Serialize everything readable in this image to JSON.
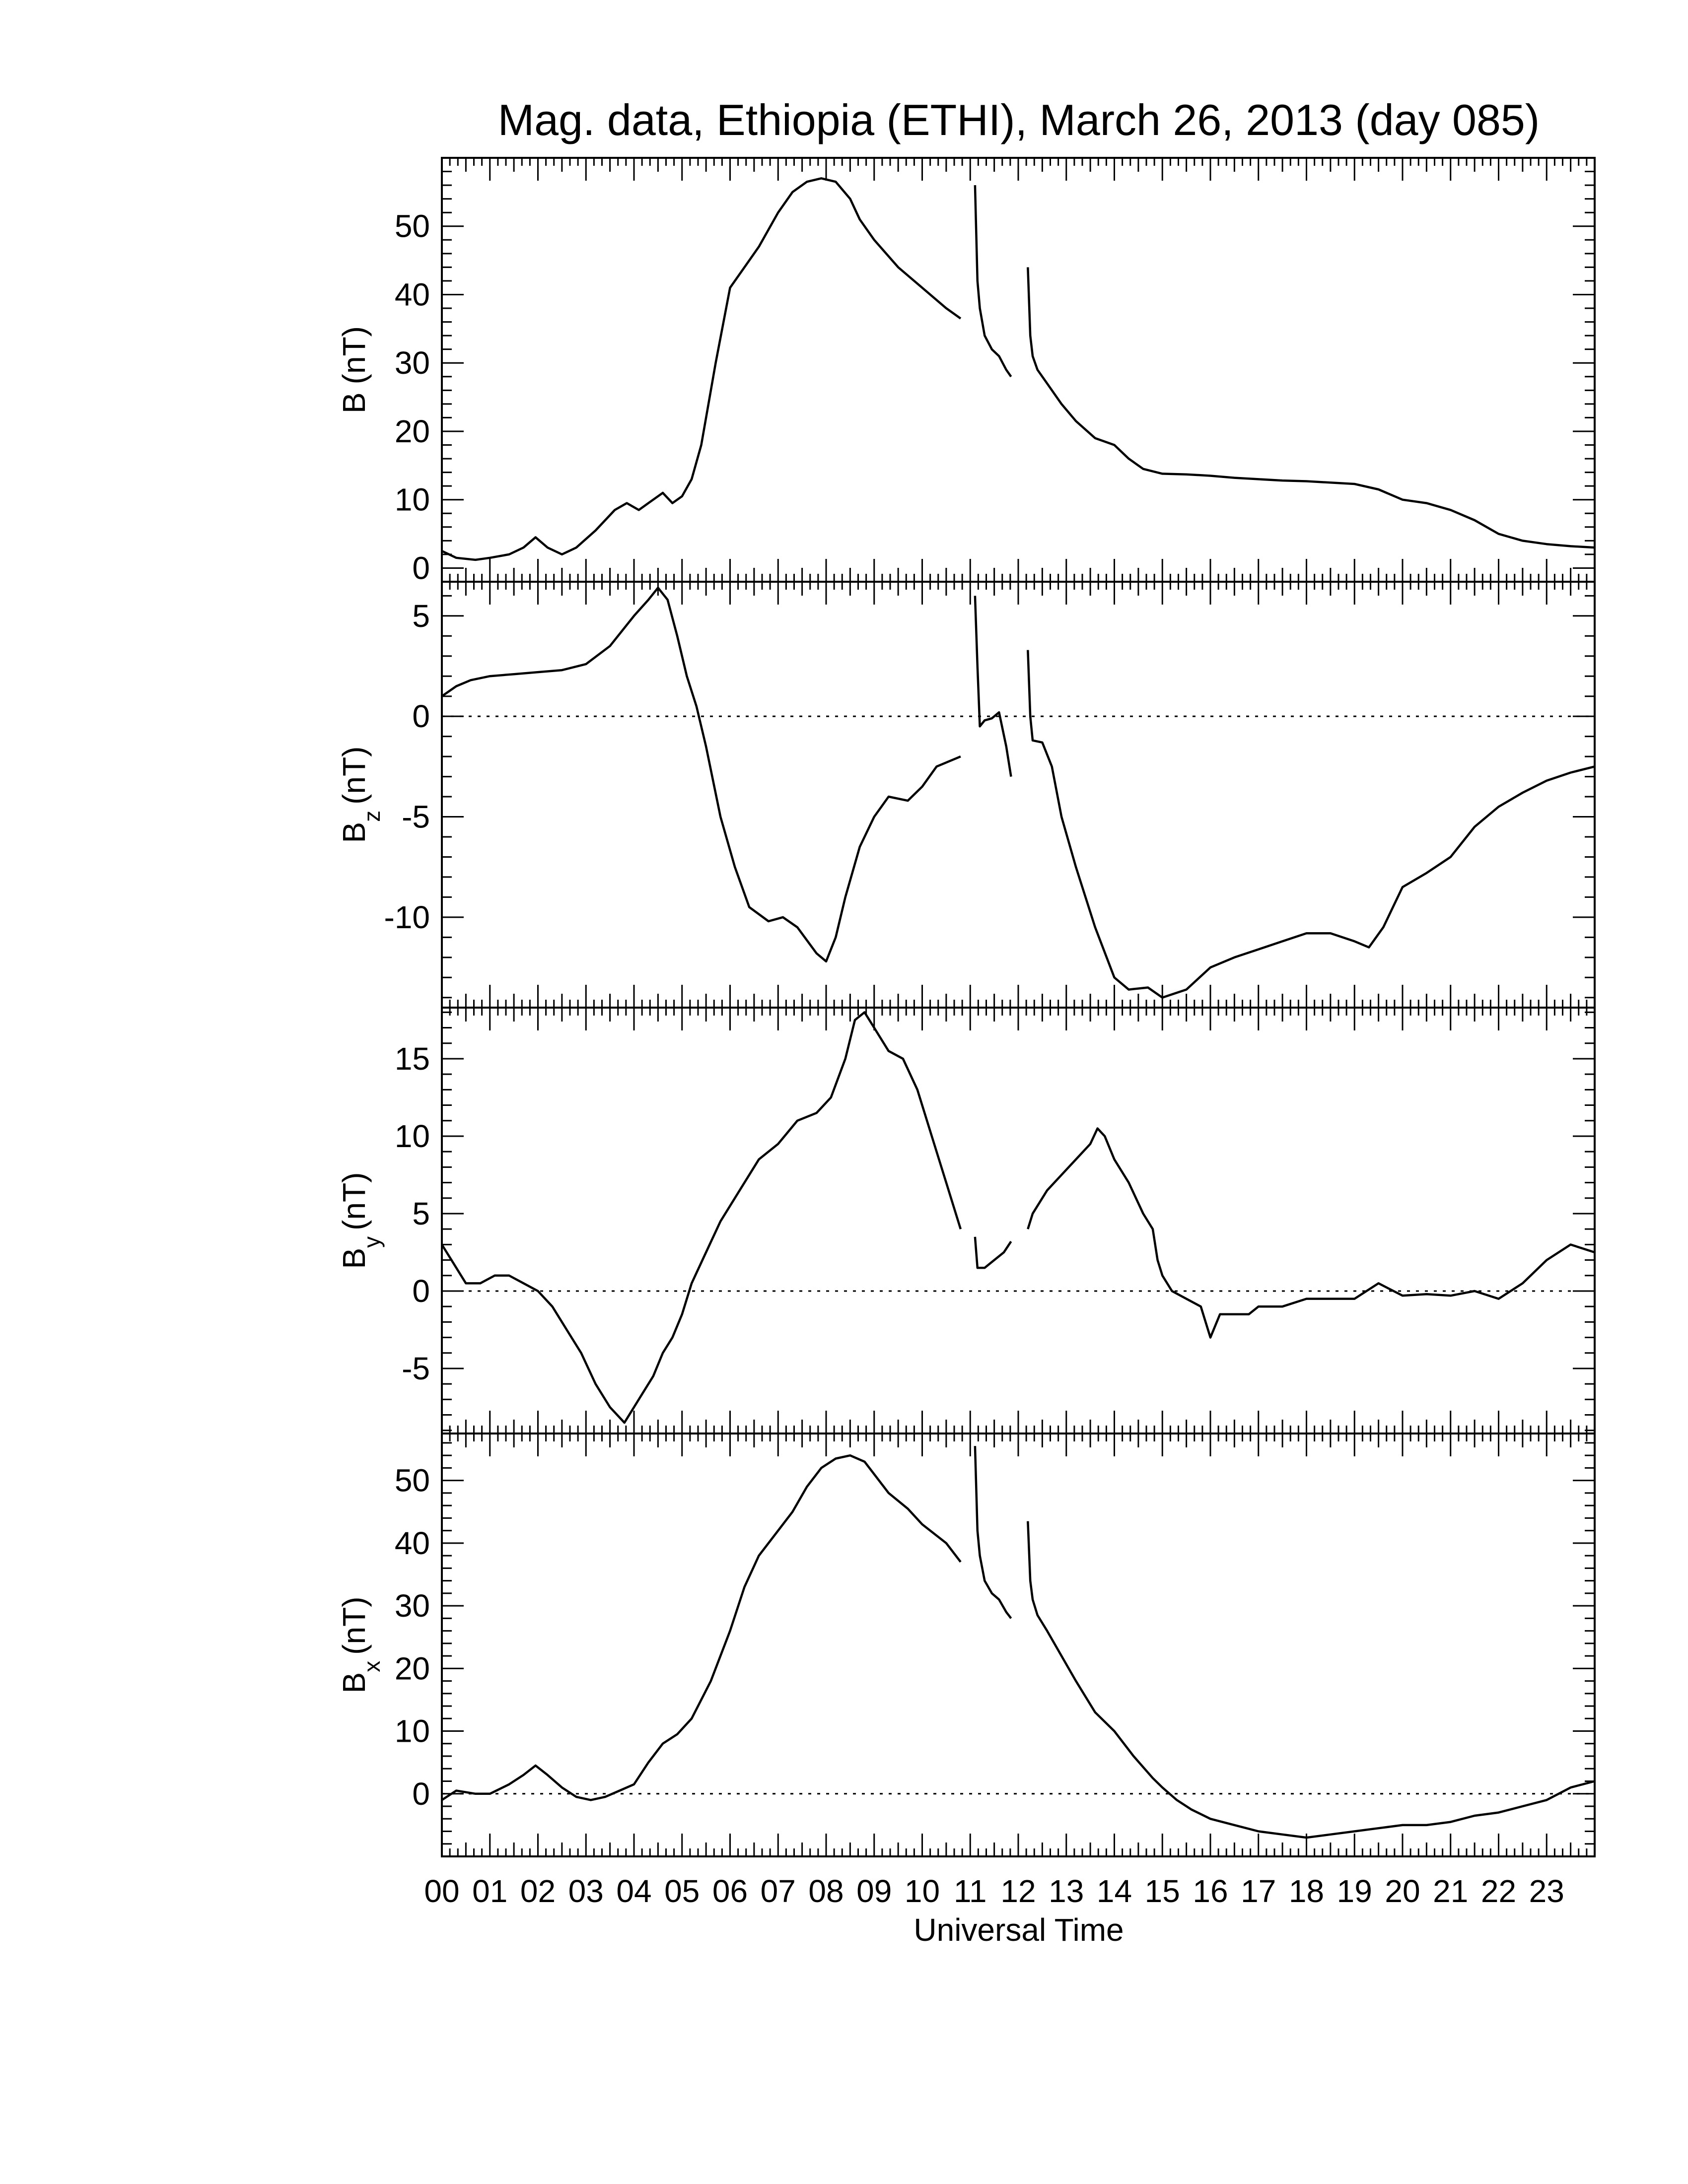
{
  "title": "Mag. data, Ethiopia (ETHI), March 26, 2013 (day 085)",
  "xlabel": "Universal Time",
  "colors": {
    "line": "#000000",
    "background": "#ffffff"
  },
  "chart_data": [
    {
      "type": "line",
      "ylabel": "B (nT)",
      "ylabel_base": "B",
      "ylabel_sub": "",
      "ylabel_unit": "(nT)",
      "xlim": [
        0,
        24
      ],
      "ylim": [
        -2,
        60
      ],
      "yticks": [
        0,
        10,
        20,
        30,
        40,
        50
      ],
      "zero_line": false,
      "series": [
        {
          "x": [
            0.0,
            0.3,
            0.7,
            1.0,
            1.4,
            1.7,
            1.95,
            2.2,
            2.5,
            2.8,
            3.2,
            3.6,
            3.85,
            4.1,
            4.3,
            4.6,
            4.8,
            5.0,
            5.2,
            5.4,
            5.7,
            6.0,
            6.3,
            6.6,
            7.0,
            7.3,
            7.6,
            7.9,
            8.2,
            8.5,
            8.7,
            9.0,
            9.5,
            10.0,
            10.5,
            10.8
          ],
          "y": [
            2.5,
            1.5,
            1.2,
            1.5,
            2.0,
            3.0,
            4.5,
            3.0,
            2.0,
            3.0,
            5.5,
            8.5,
            9.5,
            8.5,
            9.5,
            11.0,
            9.5,
            10.5,
            13.0,
            18.0,
            30.0,
            41.0,
            44.0,
            47.0,
            52.0,
            55.0,
            56.5,
            57.0,
            56.5,
            54.0,
            51.0,
            48.0,
            44.0,
            41.0,
            38.0,
            36.5
          ]
        },
        {
          "x": [
            11.1,
            11.15,
            11.2,
            11.3,
            11.45,
            11.6,
            11.75,
            11.85
          ],
          "y": [
            56.0,
            42.0,
            38.0,
            34.0,
            32.0,
            31.0,
            29.0,
            28.0
          ]
        },
        {
          "x": [
            12.2,
            12.25,
            12.3,
            12.4,
            12.6,
            12.9,
            13.2,
            13.6,
            14.0,
            14.3,
            14.6,
            15.0,
            15.5,
            16.0,
            16.5,
            17.0,
            17.5,
            18.0,
            18.5,
            19.0,
            19.5,
            20.0,
            20.5,
            21.0,
            21.5,
            22.0,
            22.5,
            23.0,
            23.5,
            24.0
          ],
          "y": [
            44.0,
            34.0,
            31.0,
            29.0,
            27.0,
            24.0,
            21.5,
            19.0,
            18.0,
            16.0,
            14.5,
            13.8,
            13.7,
            13.5,
            13.2,
            13.0,
            12.8,
            12.7,
            12.5,
            12.3,
            11.5,
            10.0,
            9.5,
            8.5,
            7.0,
            5.0,
            4.0,
            3.5,
            3.2,
            3.0
          ]
        }
      ]
    },
    {
      "type": "line",
      "ylabel": "B z (nT)",
      "ylabel_base": "B",
      "ylabel_sub": "z",
      "ylabel_unit": "(nT)",
      "xlim": [
        0,
        24
      ],
      "ylim": [
        -14.5,
        6.7
      ],
      "yticks": [
        -10,
        -5,
        0,
        5
      ],
      "zero_line": true,
      "series": [
        {
          "x": [
            0.0,
            0.3,
            0.6,
            1.0,
            1.5,
            2.0,
            2.5,
            3.0,
            3.5,
            4.0,
            4.3,
            4.5,
            4.7,
            4.9,
            5.1,
            5.3,
            5.5,
            5.8,
            6.1,
            6.4,
            6.8,
            7.1,
            7.4,
            7.8,
            8.0,
            8.2,
            8.4,
            8.7,
            9.0,
            9.3,
            9.7,
            10.0,
            10.3,
            10.6,
            10.8
          ],
          "y": [
            1.0,
            1.5,
            1.8,
            2.0,
            2.1,
            2.2,
            2.3,
            2.6,
            3.5,
            5.0,
            5.8,
            6.4,
            5.8,
            4.0,
            2.0,
            0.5,
            -1.5,
            -5.0,
            -7.5,
            -9.5,
            -10.2,
            -10.0,
            -10.5,
            -11.8,
            -12.2,
            -11.0,
            -9.0,
            -6.5,
            -5.0,
            -4.0,
            -4.2,
            -3.5,
            -2.5,
            -2.2,
            -2.0
          ]
        },
        {
          "x": [
            11.1,
            11.15,
            11.2,
            11.3,
            11.45,
            11.6,
            11.75,
            11.85
          ],
          "y": [
            6.0,
            2.5,
            -0.5,
            -0.2,
            -0.1,
            0.2,
            -1.5,
            -3.0
          ]
        },
        {
          "x": [
            12.2,
            12.25,
            12.3,
            12.5,
            12.7,
            12.9,
            13.2,
            13.6,
            14.0,
            14.3,
            14.7,
            15.0,
            15.5,
            16.0,
            16.5,
            17.0,
            17.5,
            18.0,
            18.5,
            19.0,
            19.3,
            19.6,
            20.0,
            20.5,
            21.0,
            21.5,
            22.0,
            22.5,
            23.0,
            23.5,
            24.0
          ],
          "y": [
            3.3,
            0.0,
            -1.2,
            -1.3,
            -2.5,
            -5.0,
            -7.5,
            -10.5,
            -13.0,
            -13.6,
            -13.5,
            -14.0,
            -13.6,
            -12.5,
            -12.0,
            -11.6,
            -11.2,
            -10.8,
            -10.8,
            -11.2,
            -11.5,
            -10.5,
            -8.5,
            -7.8,
            -7.0,
            -5.5,
            -4.5,
            -3.8,
            -3.2,
            -2.8,
            -2.5
          ]
        }
      ]
    },
    {
      "type": "line",
      "ylabel": "B y (nT)",
      "ylabel_base": "B",
      "ylabel_sub": "y",
      "ylabel_unit": "(nT)",
      "xlim": [
        0,
        24
      ],
      "ylim": [
        -9.2,
        18.3
      ],
      "yticks": [
        -5,
        0,
        5,
        10,
        15
      ],
      "zero_line": true,
      "series": [
        {
          "x": [
            0.0,
            0.2,
            0.5,
            0.8,
            1.1,
            1.4,
            1.7,
            2.0,
            2.3,
            2.6,
            2.9,
            3.2,
            3.5,
            3.8,
            4.0,
            4.2,
            4.4,
            4.6,
            4.8,
            5.0,
            5.2,
            5.5,
            5.8,
            6.2,
            6.6,
            7.0,
            7.4,
            7.8,
            8.1,
            8.4,
            8.6,
            8.8,
            9.0,
            9.3,
            9.6,
            9.9,
            10.2,
            10.5,
            10.8
          ],
          "y": [
            3.0,
            2.0,
            0.5,
            0.5,
            1.0,
            1.0,
            0.5,
            0.0,
            -1.0,
            -2.5,
            -4.0,
            -6.0,
            -7.5,
            -8.5,
            -7.5,
            -6.5,
            -5.5,
            -4.0,
            -3.0,
            -1.5,
            0.5,
            2.5,
            4.5,
            6.5,
            8.5,
            9.5,
            11.0,
            11.5,
            12.5,
            15.0,
            17.5,
            18.0,
            17.0,
            15.5,
            15.0,
            13.0,
            10.0,
            7.0,
            4.0
          ]
        },
        {
          "x": [
            11.1,
            11.15,
            11.3,
            11.5,
            11.7,
            11.85
          ],
          "y": [
            3.5,
            1.5,
            1.5,
            2.0,
            2.5,
            3.2
          ]
        },
        {
          "x": [
            12.2,
            12.3,
            12.6,
            12.9,
            13.2,
            13.5,
            13.65,
            13.8,
            14.0,
            14.3,
            14.6,
            14.8,
            14.9,
            15.0,
            15.2,
            15.5,
            15.8,
            16.0,
            16.2,
            16.5,
            16.8,
            17.0,
            17.5,
            18.0,
            18.5,
            19.0,
            19.5,
            20.0,
            20.5,
            21.0,
            21.5,
            22.0,
            22.5,
            23.0,
            23.5,
            24.0
          ],
          "y": [
            4.0,
            5.0,
            6.5,
            7.5,
            8.5,
            9.5,
            10.5,
            10.0,
            8.5,
            7.0,
            5.0,
            4.0,
            2.0,
            1.0,
            0.0,
            -0.5,
            -1.0,
            -3.0,
            -1.5,
            -1.5,
            -1.5,
            -1.0,
            -1.0,
            -0.5,
            -0.5,
            -0.5,
            0.5,
            -0.3,
            -0.2,
            -0.3,
            0.0,
            -0.5,
            0.5,
            2.0,
            3.0,
            2.5
          ]
        }
      ]
    },
    {
      "type": "line",
      "ylabel": "B x (nT)",
      "ylabel_base": "B",
      "ylabel_sub": "x",
      "ylabel_unit": "(nT)",
      "xlim": [
        0,
        24
      ],
      "ylim": [
        -10,
        57.5
      ],
      "yticks": [
        0,
        10,
        20,
        30,
        40,
        50
      ],
      "zero_line": true,
      "series": [
        {
          "x": [
            0.0,
            0.3,
            0.7,
            1.0,
            1.4,
            1.7,
            1.95,
            2.2,
            2.5,
            2.8,
            3.1,
            3.4,
            3.7,
            4.0,
            4.3,
            4.6,
            4.9,
            5.2,
            5.6,
            6.0,
            6.3,
            6.6,
            7.0,
            7.3,
            7.6,
            7.9,
            8.2,
            8.5,
            8.8,
            9.0,
            9.3,
            9.7,
            10.0,
            10.5,
            10.8
          ],
          "y": [
            -1.0,
            0.5,
            0.0,
            0.0,
            1.5,
            3.0,
            4.5,
            3.0,
            1.0,
            -0.5,
            -1.0,
            -0.5,
            0.5,
            1.5,
            5.0,
            8.0,
            9.5,
            12.0,
            18.0,
            26.0,
            33.0,
            38.0,
            42.0,
            45.0,
            49.0,
            52.0,
            53.5,
            54.0,
            53.0,
            51.0,
            48.0,
            45.5,
            43.0,
            40.0,
            37.0
          ]
        },
        {
          "x": [
            11.1,
            11.15,
            11.2,
            11.3,
            11.45,
            11.6,
            11.75,
            11.85
          ],
          "y": [
            55.5,
            42.0,
            38.0,
            34.0,
            32.0,
            31.0,
            29.0,
            28.0
          ]
        },
        {
          "x": [
            12.2,
            12.25,
            12.3,
            12.4,
            12.6,
            12.9,
            13.2,
            13.6,
            14.0,
            14.4,
            14.8,
            15.0,
            15.3,
            15.6,
            16.0,
            16.5,
            17.0,
            17.5,
            18.0,
            18.5,
            19.0,
            19.5,
            20.0,
            20.5,
            21.0,
            21.5,
            22.0,
            22.5,
            23.0,
            23.5,
            24.0
          ],
          "y": [
            43.5,
            34.0,
            31.0,
            28.5,
            26.0,
            22.0,
            18.0,
            13.0,
            10.0,
            6.0,
            2.5,
            1.0,
            -1.0,
            -2.5,
            -4.0,
            -5.0,
            -6.0,
            -6.5,
            -7.0,
            -6.5,
            -6.0,
            -5.5,
            -5.0,
            -5.0,
            -4.5,
            -3.5,
            -3.0,
            -2.0,
            -1.0,
            1.0,
            2.0
          ]
        }
      ]
    }
  ],
  "xticks": [
    "00",
    "01",
    "02",
    "03",
    "04",
    "05",
    "06",
    "07",
    "08",
    "09",
    "10",
    "11",
    "12",
    "13",
    "14",
    "15",
    "16",
    "17",
    "18",
    "19",
    "20",
    "21",
    "22",
    "23"
  ]
}
